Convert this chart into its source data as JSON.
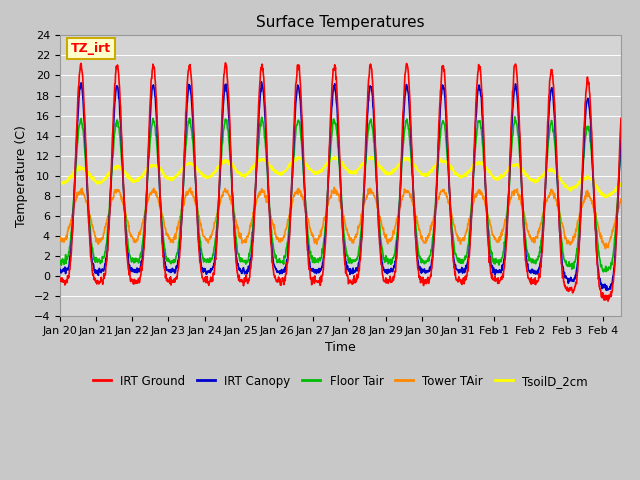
{
  "title": "Surface Temperatures",
  "xlabel": "Time",
  "ylabel": "Temperature (C)",
  "ylim": [
    -4,
    24
  ],
  "yticks": [
    -4,
    -2,
    0,
    2,
    4,
    6,
    8,
    10,
    12,
    14,
    16,
    18,
    20,
    22,
    24
  ],
  "fig_bg_color": "#c8c8c8",
  "plot_bg_color": "#d4d4d4",
  "annotation_text": "TZ_irt",
  "annotation_bg": "#ffffcc",
  "annotation_border": "#ccaa00",
  "series": {
    "IRT Ground": {
      "color": "#ff0000",
      "lw": 1.2
    },
    "IRT Canopy": {
      "color": "#0000cc",
      "lw": 1.2
    },
    "Floor Tair": {
      "color": "#00bb00",
      "lw": 1.2
    },
    "Tower TAir": {
      "color": "#ff8800",
      "lw": 1.2
    },
    "TsoilD_2cm": {
      "color": "#ffff00",
      "lw": 1.5
    }
  },
  "xtick_labels": [
    "Jan 20",
    "Jan 21",
    "Jan 22",
    "Jan 23",
    "Jan 24",
    "Jan 25",
    "Jan 26",
    "Jan 27",
    "Jan 28",
    "Jan 29",
    "Jan 30",
    "Jan 31",
    "Feb 1",
    "Feb 2",
    "Feb 3",
    "Feb 4"
  ],
  "title_fontsize": 11,
  "tick_fontsize": 8,
  "label_fontsize": 9
}
